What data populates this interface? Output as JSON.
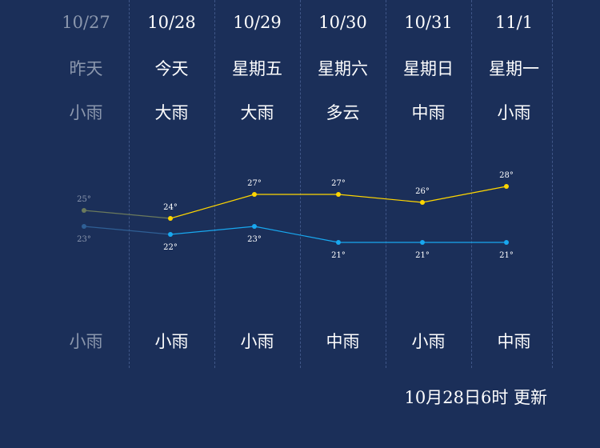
{
  "days": [
    {
      "date": "10/27",
      "weekday": "昨天",
      "day_weather": "小雨",
      "night_weather": "小雨",
      "high": 25,
      "low": 23,
      "high_label": "25°",
      "low_label": "23°",
      "past": true
    },
    {
      "date": "10/28",
      "weekday": "今天",
      "day_weather": "大雨",
      "night_weather": "小雨",
      "high": 24,
      "low": 22,
      "high_label": "24°",
      "low_label": "22°",
      "past": false
    },
    {
      "date": "10/29",
      "weekday": "星期五",
      "day_weather": "大雨",
      "night_weather": "小雨",
      "high": 27,
      "low": 23,
      "high_label": "27°",
      "low_label": "23°",
      "past": false
    },
    {
      "date": "10/30",
      "weekday": "星期六",
      "day_weather": "多云",
      "night_weather": "中雨",
      "high": 27,
      "low": 21,
      "high_label": "27°",
      "low_label": "21°",
      "past": false
    },
    {
      "date": "10/31",
      "weekday": "星期日",
      "day_weather": "中雨",
      "night_weather": "小雨",
      "high": 26,
      "low": 21,
      "high_label": "26°",
      "low_label": "21°",
      "past": false
    },
    {
      "date": "11/1",
      "weekday": "星期一",
      "day_weather": "小雨",
      "night_weather": "中雨",
      "high": 28,
      "low": 21,
      "high_label": "28°",
      "low_label": "21°",
      "past": false
    }
  ],
  "chart_data": {
    "type": "line",
    "categories": [
      "10/27",
      "10/28",
      "10/29",
      "10/30",
      "10/31",
      "11/1"
    ],
    "series": [
      {
        "values": [
          25,
          24,
          27,
          27,
          26,
          28
        ]
      },
      {
        "values": [
          23,
          22,
          23,
          21,
          21,
          21
        ]
      }
    ]
  },
  "colors": {
    "background": "#1b2f59",
    "high_line": "#ffd600",
    "low_line": "#18a8f0",
    "past_high": "#6b7a5c",
    "past_low": "#2f5f95",
    "past_text": "#8b97ad"
  },
  "footer": {
    "updated": "10月28日6时 更新"
  }
}
